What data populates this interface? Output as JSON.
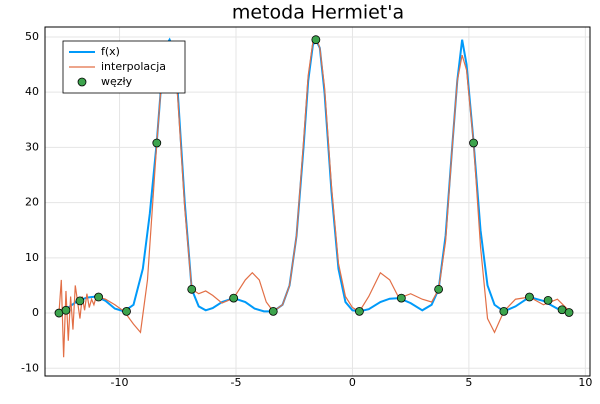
{
  "chart_data": {
    "type": "line",
    "title": "metoda Hermiet'a",
    "xlim": [
      -13.2,
      10.2
    ],
    "ylim": [
      -11.4,
      51.8
    ],
    "xticks": [
      -10,
      -5,
      0,
      5,
      10
    ],
    "yticks": [
      -10,
      0,
      10,
      20,
      30,
      40,
      50
    ],
    "grid": true,
    "legend": "top-left",
    "series": [
      {
        "name": "f(x)",
        "color": "#009af9",
        "kind": "line",
        "x": [
          -12.6,
          -12.2,
          -11.8,
          -11.4,
          -11.0,
          -10.6,
          -10.2,
          -9.8,
          -9.4,
          -9.0,
          -8.7,
          -8.4,
          -8.2,
          -8.0,
          -7.85,
          -7.7,
          -7.5,
          -7.2,
          -6.9,
          -6.6,
          -6.3,
          -6.0,
          -5.6,
          -5.1,
          -4.6,
          -4.2,
          -3.8,
          -3.4,
          -3.0,
          -2.7,
          -2.4,
          -2.1,
          -1.9,
          -1.7,
          -1.57,
          -1.4,
          -1.2,
          -0.9,
          -0.6,
          -0.3,
          0,
          0.3,
          0.7,
          1.2,
          1.6,
          2.0,
          2.5,
          3.0,
          3.4,
          3.7,
          4.0,
          4.3,
          4.5,
          4.71,
          4.9,
          5.2,
          5.5,
          5.8,
          6.1,
          6.5,
          7.0,
          7.6,
          8.2,
          8.8,
          9.4
        ],
        "values": [
          0.3,
          1.0,
          2.2,
          2.8,
          3.0,
          2.2,
          0.8,
          0.3,
          1.5,
          8,
          18,
          31,
          42,
          48.5,
          49.5,
          48,
          40,
          20,
          4.3,
          1.2,
          0.5,
          0.9,
          2,
          2.7,
          2,
          0.8,
          0.3,
          0.3,
          1.5,
          5,
          14,
          30,
          42,
          48.5,
          49.5,
          48,
          40,
          22,
          8,
          2,
          0.5,
          0.3,
          0.7,
          2,
          2.6,
          2.7,
          1.8,
          0.5,
          1.5,
          4.3,
          14,
          31,
          42,
          49.5,
          45,
          31,
          15,
          5,
          1.5,
          0.3,
          1.2,
          2.9,
          2.2,
          0.8,
          0.3
        ]
      },
      {
        "name": "interpolacja",
        "color": "#e26f46",
        "kind": "line",
        "x": [
          -12.6,
          -12.5,
          -12.4,
          -12.3,
          -12.2,
          -12.1,
          -12.0,
          -11.9,
          -11.8,
          -11.7,
          -11.6,
          -11.5,
          -11.4,
          -11.3,
          -11.2,
          -11.1,
          -11.0,
          -10.6,
          -10.2,
          -9.8,
          -9.4,
          -9.1,
          -8.8,
          -8.4,
          -8.2,
          -8.0,
          -7.85,
          -7.7,
          -7.5,
          -7.2,
          -6.9,
          -6.6,
          -6.3,
          -6.0,
          -5.6,
          -5.1,
          -4.6,
          -4.3,
          -4.0,
          -3.7,
          -3.4,
          -3.0,
          -2.7,
          -2.4,
          -2.1,
          -1.9,
          -1.7,
          -1.57,
          -1.4,
          -1.2,
          -0.9,
          -0.6,
          -0.3,
          0,
          0.3,
          0.7,
          1.2,
          1.6,
          2.0,
          2.5,
          3.0,
          3.4,
          3.7,
          4.0,
          4.3,
          4.5,
          4.71,
          4.9,
          5.2,
          5.5,
          5.8,
          6.1,
          6.5,
          7.0,
          7.6,
          8.2,
          8.8,
          9.4
        ],
        "values": [
          0,
          6,
          -8,
          4,
          -5,
          3,
          -3,
          5,
          2,
          -1,
          3,
          0.5,
          3.5,
          1,
          2.5,
          1.5,
          3,
          2.5,
          1.5,
          0.3,
          -2,
          -3.5,
          6,
          30.8,
          42,
          48.5,
          49,
          47.5,
          39,
          19,
          4.3,
          3.5,
          4,
          3.2,
          1.8,
          2.7,
          6,
          7.3,
          6,
          2,
          0.3,
          1.5,
          5,
          14,
          31,
          43,
          49,
          50,
          48,
          41,
          23,
          9,
          3,
          1,
          0.3,
          3,
          7.3,
          6,
          2.7,
          3.5,
          2.5,
          2,
          4.3,
          13,
          31,
          42,
          46.7,
          44,
          30.8,
          12,
          -1,
          -3.5,
          0.3,
          2.5,
          2.9,
          1.5,
          2.5,
          0
        ]
      },
      {
        "name": "węzły",
        "color": "#3da44d",
        "kind": "scatter",
        "x": [
          -12.6,
          -12.3,
          -11.7,
          -10.9,
          -9.7,
          -8.4,
          -6.9,
          -5.1,
          -3.4,
          -1.57,
          0.3,
          2.1,
          3.7,
          5.2,
          6.5,
          7.6,
          8.4,
          9.0,
          9.3
        ],
        "values": [
          0,
          0.5,
          2.2,
          2.9,
          0.3,
          30.8,
          4.3,
          2.7,
          0.3,
          49.5,
          0.3,
          2.7,
          4.3,
          30.8,
          0.3,
          2.9,
          2.3,
          0.6,
          0.1
        ]
      }
    ]
  }
}
